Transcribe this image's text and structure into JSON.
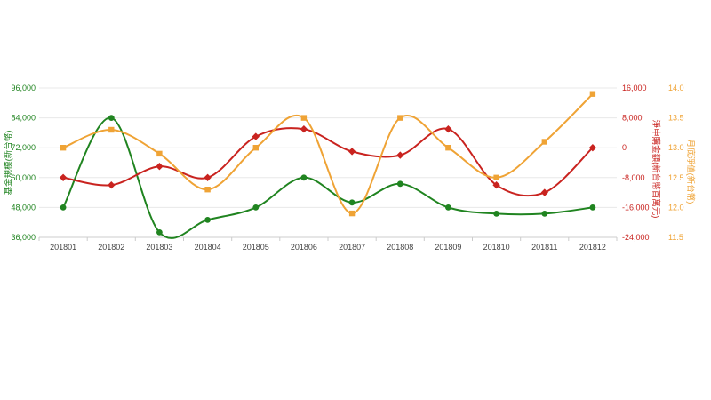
{
  "chart_data": {
    "type": "line",
    "smooth": true,
    "title": "",
    "legend": "none",
    "grid": "horizontal gridlines only",
    "categories": [
      "201801",
      "201802",
      "201803",
      "201804",
      "201805",
      "201806",
      "201807",
      "201808",
      "201809",
      "201810",
      "201811",
      "201812"
    ],
    "series": [
      {
        "name": "基金規模(新台幣)",
        "axis": "left",
        "color": "#208420",
        "marker": "circle",
        "values": [
          48000,
          84000,
          38000,
          43000,
          48000,
          60000,
          50000,
          57500,
          48000,
          45500,
          45500,
          48000
        ]
      },
      {
        "name": "淨申購金額(新台幣百萬元)",
        "axis": "right1",
        "color": "#c9231f",
        "marker": "diamond",
        "values": [
          -8000,
          -10000,
          -5000,
          -8000,
          3000,
          5000,
          -1000,
          -2000,
          5000,
          -10000,
          -12000,
          0
        ]
      },
      {
        "name": "月底淨值(新台幣)",
        "axis": "right2",
        "color": "#efa335",
        "marker": "square",
        "values": [
          13.0,
          13.3,
          12.9,
          12.3,
          13.0,
          13.5,
          11.9,
          13.5,
          13.0,
          12.5,
          13.1,
          13.9
        ]
      }
    ],
    "axes": {
      "left": {
        "title": "基金規模(新台幣)",
        "color": "#208420",
        "min": 36000,
        "max": 96000,
        "tick_labels": [
          "96,000",
          "84,000",
          "72,000",
          "60,000",
          "48,000",
          "36,000"
        ]
      },
      "right1": {
        "title": "淨申購金額(新台幣百萬元)",
        "color": "#c9231f",
        "min": -24000,
        "max": 16000,
        "tick_labels": [
          "16,000",
          "8,000",
          "0",
          "-8,000",
          "-16,000",
          "-24,000"
        ]
      },
      "right2": {
        "title": "月底淨值(新台幣)",
        "color": "#efa335",
        "min": 11.5,
        "max": 14.0,
        "tick_labels": [
          "14.0",
          "13.5",
          "13.0",
          "12.5",
          "12.0",
          "11.5"
        ]
      }
    },
    "x_axis": {
      "label_color": "#444444",
      "line_color": "#cccccc",
      "gridline_color": "#e8e8e8"
    }
  }
}
